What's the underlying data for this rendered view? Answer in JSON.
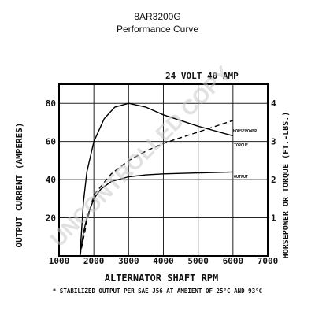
{
  "chart_data": {
    "type": "line",
    "title": "8AR3200G",
    "subtitle": "Performance Curve",
    "rating": "24 VOLT  40 AMP",
    "xlabel": "ALTERNATOR SHAFT RPM",
    "ylabel": "OUTPUT CURRENT (AMPERES)",
    "y2label": "HORSEPOWER OR TORQUE (FT.-LBS.)",
    "footnote": "* STABILIZED OUTPUT PER SAE J56 AT AMBIENT OF 25°C AND 93°C",
    "watermark": "UNCONTROLLED COPY",
    "xlim": [
      1000,
      7000
    ],
    "ylim": [
      0,
      90
    ],
    "y2lim": [
      0,
      4.5
    ],
    "x_ticks": [
      "1000",
      "2000",
      "3000",
      "4000",
      "5000",
      "6000",
      "7000"
    ],
    "x_tick_values": [
      1000,
      2000,
      3000,
      4000,
      5000,
      6000,
      7000
    ],
    "y_ticks": [
      "20",
      "40",
      "60",
      "80"
    ],
    "y_tick_values": [
      20,
      40,
      60,
      80
    ],
    "y2_ticks": [
      "1",
      "2",
      "3",
      "4"
    ],
    "y2_tick_values": [
      1,
      2,
      3,
      4
    ],
    "grid": true,
    "series": [
      {
        "name": "OUTPUT",
        "axis": "left",
        "style": "solid",
        "x": [
          1600,
          1700,
          1800,
          2000,
          2200,
          2500,
          3000,
          3500,
          4000,
          5000,
          6000
        ],
        "y": [
          0,
          12,
          20,
          30,
          35,
          39,
          41.5,
          42.5,
          43,
          43.5,
          44
        ]
      },
      {
        "name": "TORQUE",
        "axis": "right",
        "style": "solid",
        "x": [
          1600,
          1700,
          1800,
          2000,
          2300,
          2600,
          3000,
          3500,
          4000,
          5000,
          6000
        ],
        "y": [
          0,
          1.4,
          2.2,
          3.0,
          3.6,
          3.9,
          4.0,
          3.9,
          3.7,
          3.4,
          3.15
        ]
      },
      {
        "name": "HORSEPOWER",
        "axis": "right",
        "style": "dashed",
        "x": [
          1600,
          1800,
          2000,
          2500,
          3000,
          3500,
          4000,
          4500,
          5000,
          5500,
          6000
        ],
        "y": [
          0,
          0.9,
          1.6,
          2.15,
          2.5,
          2.75,
          2.95,
          3.1,
          3.25,
          3.4,
          3.55
        ]
      }
    ]
  }
}
